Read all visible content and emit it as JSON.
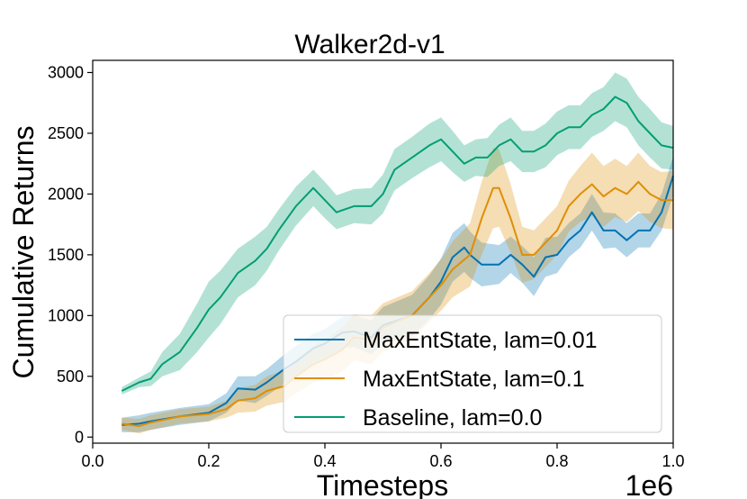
{
  "chart_data": {
    "type": "line",
    "title": "Walker2d-v1",
    "xlabel": "Timesteps",
    "ylabel": "Cumulative Returns",
    "x_offset_label": "1e6",
    "xlim": [
      0.0,
      1.0
    ],
    "ylim": [
      -50,
      3100
    ],
    "xticks": [
      0.0,
      0.2,
      0.4,
      0.6,
      0.8,
      1.0
    ],
    "xtick_labels": [
      "0.0",
      "0.2",
      "0.4",
      "0.6",
      "0.8",
      "1.0"
    ],
    "yticks": [
      0,
      500,
      1000,
      1500,
      2000,
      2500,
      3000
    ],
    "ytick_labels": [
      "0",
      "500",
      "1000",
      "1500",
      "2000",
      "2500",
      "3000"
    ],
    "legend_position": "lower-right",
    "grid": false,
    "series": [
      {
        "name": "MaxEntState, lam=0.01",
        "color": "#0173b2",
        "x": [
          0.05,
          0.08,
          0.1,
          0.15,
          0.2,
          0.23,
          0.25,
          0.28,
          0.3,
          0.33,
          0.35,
          0.38,
          0.4,
          0.43,
          0.45,
          0.48,
          0.5,
          0.55,
          0.58,
          0.6,
          0.62,
          0.64,
          0.65,
          0.67,
          0.7,
          0.72,
          0.74,
          0.76,
          0.78,
          0.8,
          0.82,
          0.84,
          0.86,
          0.88,
          0.9,
          0.92,
          0.94,
          0.96,
          0.98,
          1.0
        ],
        "values": [
          100,
          110,
          130,
          170,
          200,
          280,
          400,
          390,
          450,
          560,
          620,
          730,
          770,
          860,
          870,
          820,
          920,
          1000,
          1150,
          1280,
          1480,
          1560,
          1500,
          1420,
          1420,
          1500,
          1420,
          1320,
          1480,
          1500,
          1620,
          1700,
          1850,
          1700,
          1700,
          1620,
          1700,
          1700,
          1850,
          2150
        ],
        "band": [
          60,
          70,
          70,
          70,
          70,
          80,
          100,
          110,
          110,
          120,
          130,
          120,
          120,
          130,
          130,
          140,
          150,
          170,
          180,
          190,
          200,
          200,
          190,
          180,
          160,
          150,
          150,
          160,
          160,
          150,
          140,
          140,
          150,
          150,
          140,
          140,
          140,
          140,
          150,
          160
        ]
      },
      {
        "name": "MaxEntState, lam=0.1",
        "color": "#de8f05",
        "x": [
          0.05,
          0.08,
          0.1,
          0.15,
          0.2,
          0.23,
          0.25,
          0.28,
          0.3,
          0.33,
          0.35,
          0.38,
          0.4,
          0.43,
          0.45,
          0.48,
          0.5,
          0.55,
          0.58,
          0.6,
          0.62,
          0.65,
          0.67,
          0.69,
          0.7,
          0.72,
          0.74,
          0.76,
          0.78,
          0.8,
          0.82,
          0.84,
          0.86,
          0.88,
          0.9,
          0.92,
          0.94,
          0.96,
          0.98,
          1.0
        ],
        "values": [
          110,
          90,
          120,
          170,
          190,
          230,
          300,
          320,
          380,
          420,
          500,
          600,
          640,
          720,
          820,
          800,
          900,
          1000,
          1150,
          1250,
          1380,
          1500,
          1800,
          2050,
          2050,
          1800,
          1500,
          1500,
          1600,
          1700,
          1900,
          2000,
          2080,
          1980,
          2050,
          2000,
          2100,
          2000,
          1950,
          1950
        ],
        "band": [
          50,
          60,
          60,
          60,
          60,
          70,
          100,
          110,
          120,
          130,
          140,
          150,
          170,
          180,
          190,
          200,
          200,
          200,
          200,
          210,
          230,
          260,
          300,
          330,
          320,
          280,
          230,
          200,
          200,
          200,
          210,
          230,
          260,
          250,
          240,
          230,
          240,
          230,
          230,
          240
        ]
      },
      {
        "name": "Baseline, lam=0.0",
        "color": "#029e73",
        "x": [
          0.05,
          0.08,
          0.1,
          0.12,
          0.15,
          0.18,
          0.2,
          0.22,
          0.25,
          0.28,
          0.3,
          0.32,
          0.35,
          0.38,
          0.4,
          0.42,
          0.45,
          0.48,
          0.5,
          0.52,
          0.55,
          0.58,
          0.6,
          0.62,
          0.64,
          0.66,
          0.68,
          0.7,
          0.72,
          0.74,
          0.76,
          0.78,
          0.8,
          0.82,
          0.84,
          0.86,
          0.88,
          0.9,
          0.92,
          0.94,
          0.96,
          0.98,
          1.0
        ],
        "values": [
          380,
          450,
          480,
          600,
          700,
          900,
          1050,
          1150,
          1350,
          1450,
          1550,
          1700,
          1900,
          2050,
          1950,
          1850,
          1900,
          1900,
          2000,
          2200,
          2300,
          2400,
          2450,
          2350,
          2250,
          2300,
          2300,
          2400,
          2450,
          2350,
          2350,
          2400,
          2500,
          2550,
          2550,
          2650,
          2700,
          2800,
          2750,
          2600,
          2500,
          2400,
          2380
        ],
        "band": [
          30,
          40,
          60,
          100,
          150,
          200,
          230,
          220,
          200,
          200,
          180,
          170,
          160,
          150,
          150,
          140,
          140,
          150,
          160,
          170,
          170,
          180,
          180,
          170,
          150,
          150,
          160,
          170,
          180,
          170,
          170,
          180,
          180,
          180,
          180,
          180,
          180,
          200,
          200,
          200,
          200,
          190,
          180
        ]
      }
    ]
  }
}
